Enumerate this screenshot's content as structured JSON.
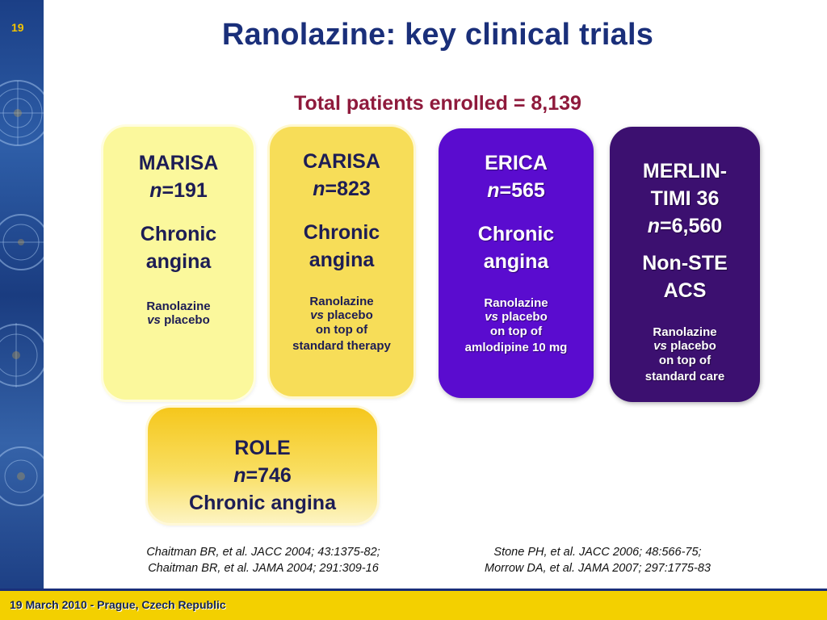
{
  "slide": {
    "number": "19",
    "title": "Ranolazine: key clinical trials",
    "subtitle": "Total patients enrolled = 8,139",
    "footer": "19 March 2010 - Prague, Czech Republic"
  },
  "trials": [
    {
      "name": "MARISA",
      "n_label": "n",
      "n_value": "=191",
      "condition_1": "Chronic",
      "condition_2": "angina",
      "detail_1": "Ranolazine",
      "detail_vs": "vs",
      "detail_2": " placebo"
    },
    {
      "name": "CARISA",
      "n_label": "n",
      "n_value": "=823",
      "condition_1": "Chronic",
      "condition_2": "angina",
      "detail_1": "Ranolazine",
      "detail_vs": "vs",
      "detail_2": " placebo",
      "detail_3": "on top of",
      "detail_4": "standard therapy"
    },
    {
      "name": "ERICA",
      "n_label": "n",
      "n_value": "=565",
      "condition_1": "Chronic",
      "condition_2": "angina",
      "detail_1": "Ranolazine",
      "detail_vs": "vs",
      "detail_2": " placebo",
      "detail_3": "on top of",
      "detail_4": "amlodipine 10 mg"
    },
    {
      "name_1": "MERLIN-",
      "name_2": "TIMI 36",
      "n_label": "n",
      "n_value": "=6,560",
      "condition_1": "Non-STE",
      "condition_2": "ACS",
      "detail_1": "Ranolazine",
      "detail_vs": "vs",
      "detail_2": " placebo",
      "detail_3": "on top of",
      "detail_4": "standard care"
    },
    {
      "name": "ROLE",
      "n_label": "n",
      "n_value": "=746",
      "condition": "Chronic angina"
    }
  ],
  "references": {
    "left": [
      "Chaitman BR, et al. JACC 2004; 43:1375-82;",
      "Chaitman BR, et al. JAMA 2004; 291:309-16"
    ],
    "right": [
      "Stone PH, et al. JACC 2006; 48:566-75;",
      "Morrow DA, et al. JAMA 2007; 297:1775-83"
    ]
  },
  "colors": {
    "title": "#1a2f7a",
    "subtitle": "#8f1a3c",
    "marisa_card": "#fbf89c",
    "carisa_card": "#f7dd58",
    "erica_card": "#5a0ccf",
    "merlin_card": "#3c1070",
    "role_card": "#f5c71c",
    "footer_bar": "#f3d000"
  },
  "decor": {
    "sidebar_image": "astronomical clock collage"
  }
}
